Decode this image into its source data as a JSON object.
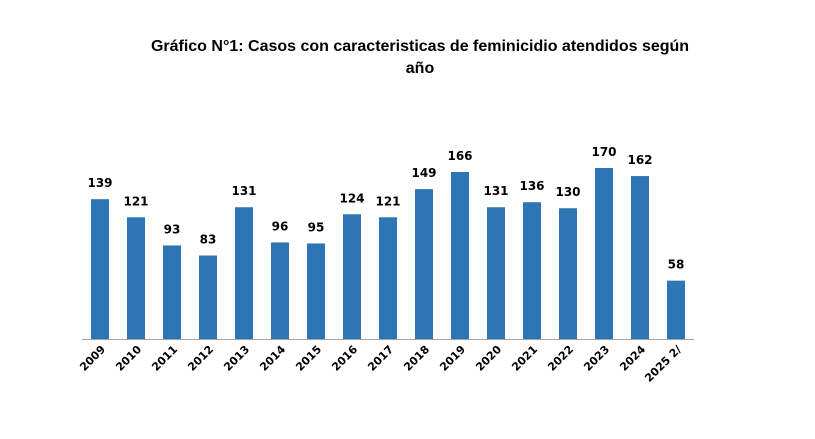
{
  "chart_data": {
    "type": "bar",
    "title": "Gráfico N°1: Casos con caracteristicas de feminicidio atendidos según año",
    "categories": [
      "2009",
      "2010",
      "2011",
      "2012",
      "2013",
      "2014",
      "2015",
      "2016",
      "2017",
      "2018",
      "2019",
      "2020",
      "2021",
      "2022",
      "2023",
      "2024",
      "2025 2/"
    ],
    "values": [
      139,
      121,
      93,
      83,
      131,
      96,
      95,
      124,
      121,
      149,
      166,
      131,
      136,
      130,
      170,
      162,
      58
    ],
    "data_labels": [
      "139",
      "121",
      "93",
      "83",
      "131",
      "96",
      "95",
      "124",
      "121",
      "149",
      "166",
      "131",
      "136",
      "130",
      "170",
      "162",
      "58"
    ],
    "xlabel": "",
    "ylabel": "",
    "ylim": [
      0,
      170
    ],
    "grid": false,
    "legend": "none",
    "bar_color": "#2E75B6",
    "axis_color": "#A6A6A6"
  }
}
